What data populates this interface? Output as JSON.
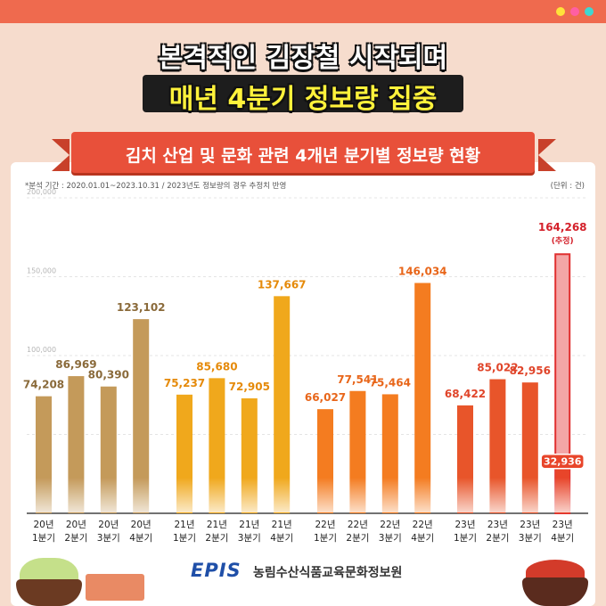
{
  "headline": {
    "line1": "본격적인 김장철 시작되며",
    "line2": "매년 4분기 정보량 집중"
  },
  "ribbon_title": "김치 산업 및 문화 관련 4개년 분기별 정보량 현황",
  "note": "*분석 기간 : 2020.01.01~2023.10.31 / 2023년도 정보량의 경우 추정치 반영",
  "unit": "(단위 : 건)",
  "footer": {
    "logo": "EPIS",
    "org": "농림수산식품교육문화정보원"
  },
  "colors": {
    "year_2020": "#c49a5a",
    "year_2021": "#f0a81c",
    "year_2022": "#f47c20",
    "year_2023": "#e8552a",
    "estimate_fill": "#f3a6a6",
    "estimate_border": "#e03030",
    "label_2020": "#8a6a3a",
    "label_2021": "#e58a0a",
    "label_2022": "#e8661a",
    "label_2023": "#e0452a",
    "label_estimate": "#d4202a"
  },
  "chart_data": {
    "type": "bar",
    "ylim": [
      0,
      200000
    ],
    "y_ticks": [
      "200,000",
      "150,000",
      "100,000"
    ],
    "y_tick_values": [
      200000,
      150000,
      100000
    ],
    "grid": true,
    "categories": [
      [
        "20년",
        "1분기"
      ],
      [
        "20년",
        "2분기"
      ],
      [
        "20년",
        "3분기"
      ],
      [
        "20년",
        "4분기"
      ],
      [
        "21년",
        "1분기"
      ],
      [
        "21년",
        "2분기"
      ],
      [
        "21년",
        "3분기"
      ],
      [
        "21년",
        "4분기"
      ],
      [
        "22년",
        "1분기"
      ],
      [
        "22년",
        "2분기"
      ],
      [
        "22년",
        "3분기"
      ],
      [
        "22년",
        "4분기"
      ],
      [
        "23년",
        "1분기"
      ],
      [
        "23년",
        "2분기"
      ],
      [
        "23년",
        "3분기"
      ],
      [
        "23년",
        "4분기"
      ]
    ],
    "values": [
      74208,
      86969,
      80390,
      123102,
      75237,
      85680,
      72905,
      137667,
      66027,
      77541,
      75464,
      146034,
      68422,
      85022,
      82956,
      164268
    ],
    "labels": [
      "74,208",
      "86,969",
      "80,390",
      "123,102",
      "75,237",
      "85,680",
      "72,905",
      "137,667",
      "66,027",
      "77,541",
      "75,464",
      "146,034",
      "68,422",
      "85,022",
      "82,956",
      "164,268"
    ],
    "year_index": [
      0,
      0,
      0,
      0,
      1,
      1,
      1,
      1,
      2,
      2,
      2,
      2,
      3,
      3,
      3,
      3
    ],
    "estimate": {
      "index": 15,
      "tag": "(추정)",
      "actual_value": 32936,
      "actual_label": "32,936"
    }
  }
}
